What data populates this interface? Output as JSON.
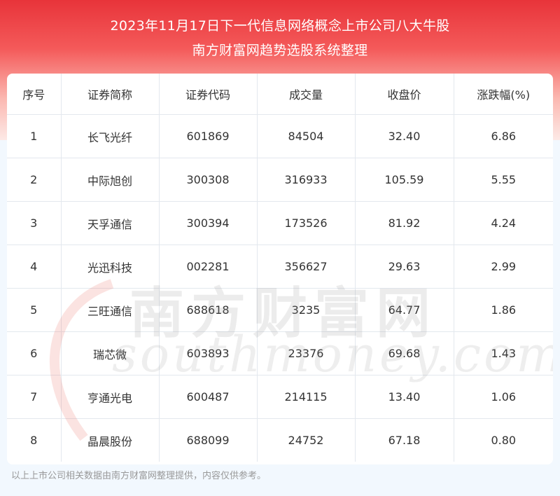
{
  "header": {
    "title_line1": "2023年11月17日下一代信息网络概念上市公司八大牛股",
    "title_line2": "南方财富网趋势选股系统整理"
  },
  "table": {
    "columns": [
      "序号",
      "证券简称",
      "证券代码",
      "成交量",
      "收盘价",
      "涨跌幅(%)"
    ],
    "rows": [
      [
        "1",
        "长飞光纤",
        "601869",
        "84504",
        "32.40",
        "6.86"
      ],
      [
        "2",
        "中际旭创",
        "300308",
        "316933",
        "105.59",
        "5.55"
      ],
      [
        "3",
        "天孚通信",
        "300394",
        "173526",
        "81.92",
        "4.24"
      ],
      [
        "4",
        "光迅科技",
        "002281",
        "356627",
        "29.63",
        "2.99"
      ],
      [
        "5",
        "三旺通信",
        "688618",
        "3235",
        "64.77",
        "1.86"
      ],
      [
        "6",
        "瑞芯微",
        "603893",
        "23376",
        "69.68",
        "1.43"
      ],
      [
        "7",
        "亨通光电",
        "600487",
        "214115",
        "13.40",
        "1.06"
      ],
      [
        "8",
        "晶晨股份",
        "688099",
        "24752",
        "67.18",
        "0.80"
      ]
    ]
  },
  "watermark": {
    "cn": "南方财富网",
    "en": "southmoney.com"
  },
  "footer": {
    "note": "以上上市公司相关数据由南方财富网整理提供，内容仅供参考。"
  },
  "colors": {
    "header_red": "#e8343a",
    "page_bg": "#f2f8fe"
  }
}
